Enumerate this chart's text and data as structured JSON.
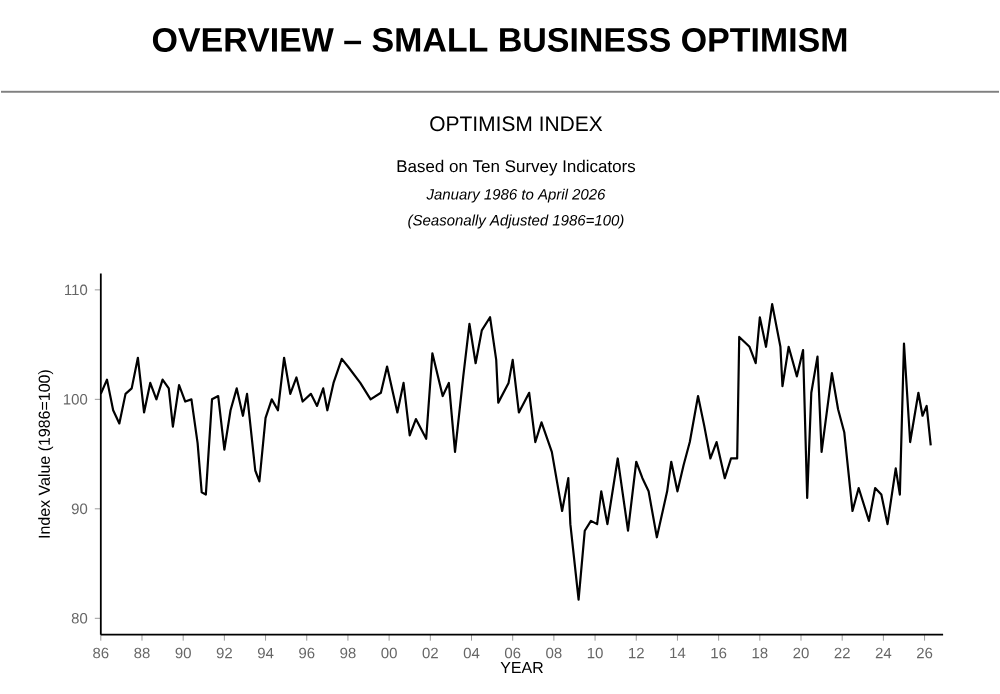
{
  "chart_data": {
    "type": "line",
    "title": "OVERVIEW – SMALL BUSINESS OPTIMISM",
    "subtitle": "OPTIMISM INDEX",
    "annotations": [
      "Based on Ten Survey Indicators",
      "January 1986 to April 2026",
      "(Seasonally Adjusted 1986=100)"
    ],
    "xlabel": "YEAR",
    "ylabel": "Index Value (1986=100)",
    "x": [
      1986.0,
      1986.3,
      1986.6,
      1986.9,
      1987.2,
      1987.5,
      1987.8,
      1988.1,
      1988.4,
      1988.7,
      1989.0,
      1989.3,
      1989.5,
      1989.8,
      1990.1,
      1990.4,
      1990.7,
      1990.9,
      1991.1,
      1991.4,
      1991.7,
      1992.0,
      1992.3,
      1992.6,
      1992.9,
      1993.1,
      1993.5,
      1993.7,
      1994.0,
      1994.3,
      1994.6,
      1994.9,
      1995.2,
      1995.5,
      1995.8,
      1996.2,
      1996.5,
      1996.8,
      1997.0,
      1997.3,
      1997.7,
      1998.0,
      1998.6,
      1999.1,
      1999.6,
      1999.9,
      2000.4,
      2000.7,
      2001.0,
      2001.3,
      2001.8,
      2002.1,
      2002.6,
      2002.9,
      2003.2,
      2003.6,
      2003.9,
      2004.2,
      2004.5,
      2004.9,
      2005.2,
      2005.3,
      2005.8,
      2006.0,
      2006.3,
      2006.8,
      2007.1,
      2007.4,
      2007.9,
      2008.4,
      2008.7,
      2008.8,
      2009.2,
      2009.5,
      2009.8,
      2010.1,
      2010.3,
      2010.6,
      2011.1,
      2011.6,
      2012.0,
      2012.3,
      2012.6,
      2013.0,
      2013.5,
      2013.7,
      2014.0,
      2014.3,
      2014.6,
      2015.0,
      2015.3,
      2015.6,
      2015.9,
      2016.3,
      2016.6,
      2016.9,
      2017.0,
      2017.5,
      2017.8,
      2018.0,
      2018.3,
      2018.6,
      2019.0,
      2019.1,
      2019.4,
      2019.8,
      2020.1,
      2020.3,
      2020.5,
      2020.8,
      2021.0,
      2021.5,
      2021.8,
      2022.1,
      2022.5,
      2022.8,
      2023.3,
      2023.6,
      2023.9,
      2024.2,
      2024.6,
      2024.8,
      2025.0,
      2025.3,
      2025.7,
      2025.9,
      2026.1,
      2026.3
    ],
    "series": [
      {
        "color": "#000000",
        "values": [
          100.5,
          101.8,
          99,
          97.8,
          100.5,
          101,
          103.8,
          98.8,
          101.5,
          100,
          101.8,
          101,
          97.5,
          101.3,
          99.8,
          100,
          96,
          91.5,
          91.3,
          100,
          100.3,
          95.4,
          99,
          101,
          98.5,
          100.5,
          93.5,
          92.5,
          98.3,
          100,
          99,
          103.8,
          100.5,
          102,
          99.8,
          100.5,
          99.4,
          101,
          99,
          101.5,
          103.7,
          103,
          101.5,
          100,
          100.6,
          103,
          98.8,
          101.5,
          96.7,
          98.2,
          96.4,
          104.2,
          100.3,
          101.5,
          95.2,
          102.1,
          106.9,
          103.3,
          106.3,
          107.5,
          103.6,
          99.7,
          101.5,
          103.6,
          98.8,
          100.6,
          96.1,
          97.9,
          95.2,
          89.8,
          92.8,
          88.6,
          81.7,
          88,
          88.9,
          88.6,
          91.6,
          88.6,
          94.6,
          88,
          94.3,
          92.8,
          91.6,
          87.4,
          91.6,
          94.3,
          91.6,
          94,
          96.1,
          100.3,
          97.6,
          94.6,
          96.1,
          92.8,
          94.6,
          94.6,
          105.7,
          104.8,
          103.3,
          107.5,
          104.8,
          108.7,
          104.8,
          101.2,
          104.8,
          102.1,
          104.5,
          91,
          100.6,
          103.9,
          95.2,
          102.4,
          99.1,
          97,
          89.8,
          91.9,
          88.9,
          91.9,
          91.3,
          88.6,
          93.7,
          91.3,
          105.1,
          96.1,
          100.6,
          98.5,
          99.4,
          95.8
        ]
      }
    ],
    "xlim": [
      1986,
      2026.9
    ],
    "ylim": [
      78.5,
      111.5
    ],
    "xticks": [
      {
        "value": 1986,
        "label": "86"
      },
      {
        "value": 1988,
        "label": "88"
      },
      {
        "value": 1990,
        "label": "90"
      },
      {
        "value": 1992,
        "label": "92"
      },
      {
        "value": 1994,
        "label": "94"
      },
      {
        "value": 1996,
        "label": "96"
      },
      {
        "value": 1998,
        "label": "98"
      },
      {
        "value": 2000,
        "label": "00"
      },
      {
        "value": 2002,
        "label": "02"
      },
      {
        "value": 2004,
        "label": "04"
      },
      {
        "value": 2006,
        "label": "06"
      },
      {
        "value": 2008,
        "label": "08"
      },
      {
        "value": 2010,
        "label": "10"
      },
      {
        "value": 2012,
        "label": "12"
      },
      {
        "value": 2014,
        "label": "14"
      },
      {
        "value": 2016,
        "label": "16"
      },
      {
        "value": 2018,
        "label": "18"
      },
      {
        "value": 2020,
        "label": "20"
      },
      {
        "value": 2022,
        "label": "22"
      },
      {
        "value": 2024,
        "label": "24"
      },
      {
        "value": 2026,
        "label": "26"
      }
    ],
    "yticks": [
      80,
      90,
      100,
      110
    ]
  }
}
